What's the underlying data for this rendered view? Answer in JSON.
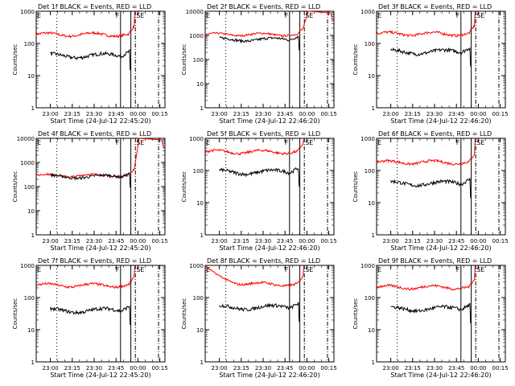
{
  "chart_data": [
    {
      "type": "line",
      "title": "Det 1f BLACK = Events, RED = LLD",
      "xlabel": "Start Time (24-Jul-12 22:45:20)",
      "ylabel": "Counts/sec",
      "yscale": "log",
      "ylim": [
        1,
        1000
      ],
      "ytick_labels": [
        "1",
        "10",
        "100",
        "1000"
      ],
      "xtick_labels": [
        "23:00",
        "23:15",
        "23:30",
        "23:45",
        "00:00",
        "00:15"
      ],
      "markers": {
        "F": "F",
        "S": "S",
        "E": "E"
      },
      "black_level": 42,
      "red_level": 190,
      "red_end": "rise"
    },
    {
      "type": "line",
      "title": "Det 2f BLACK = Events, RED = LLD",
      "xlabel": "Start Time (24-Jul-12 22:46:20)",
      "ylabel": "Counts/sec",
      "yscale": "log",
      "ylim": [
        1,
        10000
      ],
      "ytick_labels": [
        "1",
        "10",
        "100",
        "1000",
        "10000"
      ],
      "xtick_labels": [
        "23:00",
        "23:15",
        "23:30",
        "23:45",
        "00:00",
        "00:15"
      ],
      "markers": {
        "F": "F",
        "S": "S",
        "E": "E"
      },
      "black_level": 680,
      "red_level": 1100,
      "red_end": "spike"
    },
    {
      "type": "line",
      "title": "Det 3f BLACK = Events, RED = LLD",
      "xlabel": "Start Time (24-Jul-12 22:46:20)",
      "ylabel": "Counts/sec",
      "yscale": "log",
      "ylim": [
        1,
        1000
      ],
      "ytick_labels": [
        "1",
        "10",
        "100",
        "1000"
      ],
      "xtick_labels": [
        "23:00",
        "23:15",
        "23:30",
        "23:45",
        "00:00",
        "00:15"
      ],
      "markers": {
        "F": "F",
        "S": "S",
        "E": "E"
      },
      "black_level": 55,
      "red_level": 200,
      "red_end": "rise"
    },
    {
      "type": "line",
      "title": "Det 4f BLACK = Events, RED = LLD",
      "xlabel": "Start Time (24-Jul-12 22:45:20)",
      "ylabel": "Counts/sec",
      "yscale": "log",
      "ylim": [
        1,
        10000
      ],
      "ytick_labels": [
        "1",
        "10",
        "100",
        "1000",
        "10000"
      ],
      "xtick_labels": [
        "23:00",
        "23:15",
        "23:30",
        "23:45",
        "00:00",
        "00:15"
      ],
      "markers": {
        "F": "F",
        "S": "S",
        "E": "E"
      },
      "black_level": 260,
      "red_level": 290,
      "red_end": "spike"
    },
    {
      "type": "line",
      "title": "Det 5f BLACK = Events, RED = LLD",
      "xlabel": "Start Time (24-Jul-12 22:46:20)",
      "ylabel": "Counts/sec",
      "yscale": "log",
      "ylim": [
        1,
        1000
      ],
      "ytick_labels": [
        "1",
        "10",
        "100",
        "1000"
      ],
      "xtick_labels": [
        "23:00",
        "23:15",
        "23:30",
        "23:45",
        "00:00",
        "00:15"
      ],
      "markers": {
        "F": "F",
        "S": "S",
        "E": "E"
      },
      "black_level": 90,
      "red_level": 380,
      "red_end": "rise"
    },
    {
      "type": "line",
      "title": "Det 6f BLACK = Events, RED = LLD",
      "xlabel": "Start Time (24-Jul-12 22:46:20)",
      "ylabel": "Counts/sec",
      "yscale": "log",
      "ylim": [
        1,
        1000
      ],
      "ytick_labels": [
        "1",
        "10",
        "100",
        "1000"
      ],
      "xtick_labels": [
        "23:00",
        "23:15",
        "23:30",
        "23:45",
        "00:00",
        "00:15"
      ],
      "markers": {
        "F": "F",
        "S": "S",
        "E": "E"
      },
      "black_level": 40,
      "red_level": 180,
      "red_end": "rise"
    },
    {
      "type": "line",
      "title": "Det 7f BLACK = Events, RED = LLD",
      "xlabel": "Start Time (24-Jul-12 22:45:20)",
      "ylabel": "Counts/sec",
      "yscale": "log",
      "ylim": [
        1,
        1000
      ],
      "ytick_labels": [
        "1",
        "10",
        "100",
        "1000"
      ],
      "xtick_labels": [
        "23:00",
        "23:15",
        "23:30",
        "23:45",
        "00:00",
        "00:15"
      ],
      "markers": {
        "F": "F",
        "S": "S",
        "E": "E"
      },
      "black_level": 40,
      "red_level": 240,
      "red_end": "rise"
    },
    {
      "type": "line",
      "title": "Det 8f BLACK = Events, RED = LLD",
      "xlabel": "Start Time (24-Jul-12 22:46:20)",
      "ylabel": "Counts/sec",
      "yscale": "log",
      "ylim": [
        1,
        1000
      ],
      "ytick_labels": [
        "1",
        "10",
        "100",
        "1000"
      ],
      "xtick_labels": [
        "23:00",
        "23:15",
        "23:30",
        "23:45",
        "00:00",
        "00:15"
      ],
      "markers": {
        "F": "F",
        "S": "S",
        "E": "E"
      },
      "black_level": 50,
      "red_level": 260,
      "red_end": "rise",
      "red_start": 1000
    },
    {
      "type": "line",
      "title": "Det 9f BLACK = Events, RED = LLD",
      "xlabel": "Start Time (24-Jul-12 22:46:20)",
      "ylabel": "Counts/sec",
      "yscale": "log",
      "ylim": [
        1,
        1000
      ],
      "ytick_labels": [
        "1",
        "10",
        "100",
        "1000"
      ],
      "xtick_labels": [
        "23:00",
        "23:15",
        "23:30",
        "23:45",
        "00:00",
        "00:15"
      ],
      "markers": {
        "F": "F",
        "S": "S",
        "E": "E"
      },
      "black_level": 45,
      "red_level": 210,
      "red_end": "rise"
    }
  ],
  "colors": {
    "events": "#000000",
    "lld": "#ff0000",
    "axes": "#000000",
    "background": "#ffffff"
  }
}
